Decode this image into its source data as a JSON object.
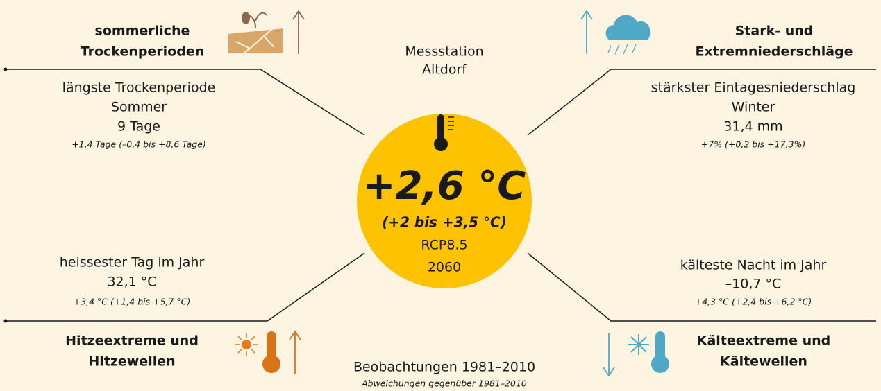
{
  "station": [
    "Messstation",
    "Altdorf"
  ],
  "center": {
    "value": "+2,6 °C",
    "range": "(+2 bis +3,5 °C)",
    "scenario": "RCP8.5",
    "year": "2060"
  },
  "footer": {
    "title": "Beobachtungen 1981–2010",
    "note": "Abweichungen gegenüber 1981–2010"
  },
  "quadrants": [
    {
      "heading": [
        "sommerliche",
        "Trockenperioden"
      ],
      "label": [
        "längste Trockenperiode",
        "Sommer"
      ],
      "value": "9 Tage",
      "change": "+1,4 Tage (–0,4 bis +8,6 Tage)"
    },
    {
      "heading": [
        "Stark- und",
        "Extremniederschläge"
      ],
      "label": [
        "stärkster Eintagesniederschlag",
        "Winter"
      ],
      "value": "31,4 mm",
      "change": "+7% (+0,2 bis +17,3%)"
    },
    {
      "heading": [
        "Hitzeextreme und",
        "Hitzewellen"
      ],
      "label": [
        "heissester Tag im Jahr"
      ],
      "value": "32,1 °C",
      "change": "+3,4 °C (+1,4 bis +5,7 °C)"
    },
    {
      "heading": [
        "Kälteextreme und",
        "Kältewellen"
      ],
      "label": [
        "kälteste Nacht im Jahr"
      ],
      "value": "–10,7 °C",
      "change": "+4,3 °C (+2,4 bis +6,2 °C)"
    }
  ]
}
